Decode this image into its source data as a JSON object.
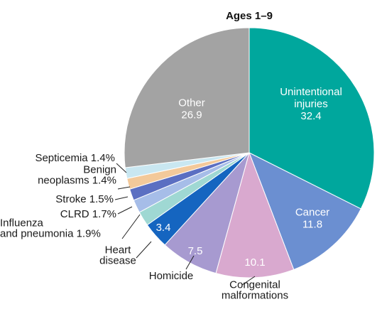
{
  "chart_data": {
    "type": "pie",
    "title": "Ages 1–9",
    "unit": "%",
    "slices": [
      {
        "label": "Unintentional injuries",
        "display": [
          "Unintentional",
          "injuries",
          "32.4"
        ],
        "value": 32.4,
        "color": "#00a79d"
      },
      {
        "label": "Cancer",
        "display": [
          "Cancer",
          "11.8"
        ],
        "value": 11.8,
        "color": "#6b8fd1"
      },
      {
        "label": "Congenital malformations",
        "display": [
          "10.1"
        ],
        "outside": [
          "Congenital",
          "malformations"
        ],
        "value": 10.1,
        "color": "#d9a9cf"
      },
      {
        "label": "Homicide",
        "display": [
          "7.5"
        ],
        "outside": [
          "Homicide"
        ],
        "value": 7.5,
        "color": "#a79ad0"
      },
      {
        "label": "Heart disease",
        "display": [
          "3.4"
        ],
        "outside": [
          "Heart",
          "disease"
        ],
        "value": 3.4,
        "color": "#1565c0"
      },
      {
        "label": "Influenza and pneumonia",
        "outside": [
          "Influenza",
          "and pneumonia 1.9%"
        ],
        "value": 1.9,
        "color": "#9fd8d3"
      },
      {
        "label": "CLRD",
        "outside": [
          "CLRD 1.7%"
        ],
        "value": 1.7,
        "color": "#a6bde8"
      },
      {
        "label": "Stroke",
        "outside": [
          "Stroke 1.5%"
        ],
        "value": 1.5,
        "color": "#5b6fc2"
      },
      {
        "label": "Benign neoplasms",
        "outside": [
          "Benign",
          "neoplasms 1.4%"
        ],
        "value": 1.4,
        "color": "#f3c99a"
      },
      {
        "label": "Septicemia",
        "outside": [
          "Septicemia 1.4%"
        ],
        "value": 1.4,
        "color": "#c9e7f1"
      },
      {
        "label": "Other",
        "display": [
          "Other",
          "26.9"
        ],
        "value": 26.9,
        "color": "#a3a3a3"
      }
    ]
  }
}
